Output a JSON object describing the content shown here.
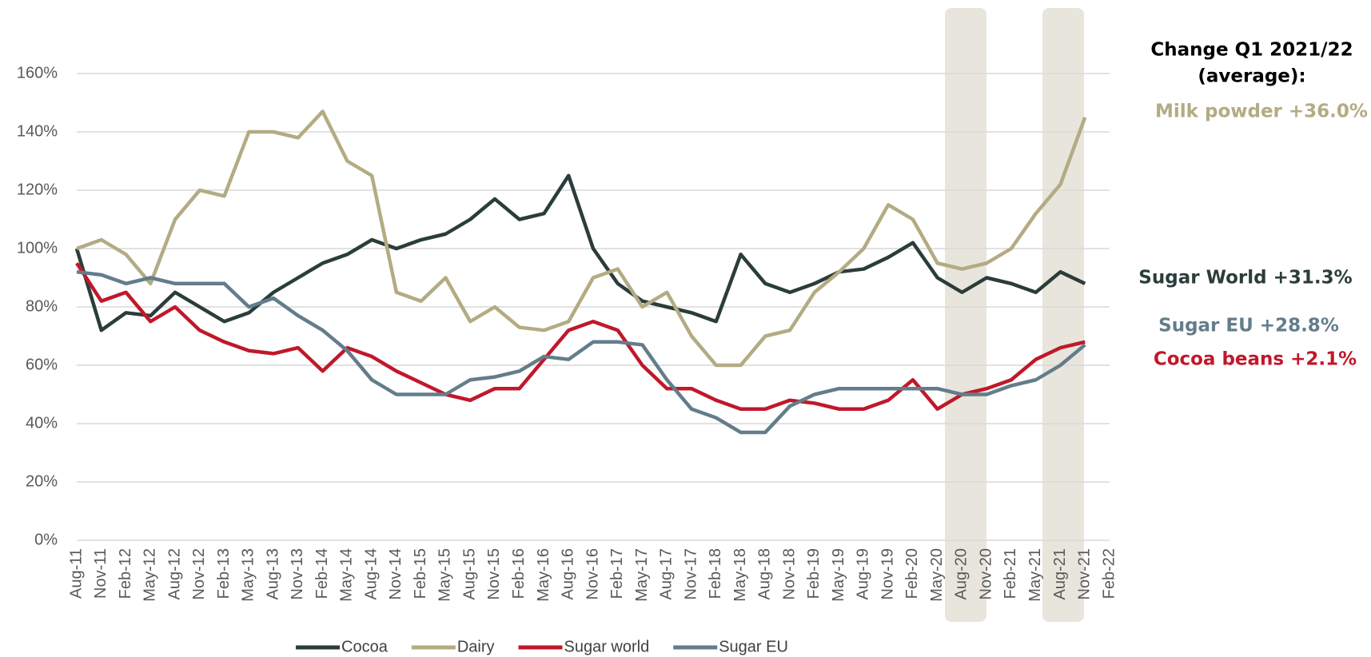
{
  "chart_data": {
    "type": "line",
    "categories": [
      "Aug-11",
      "Nov-11",
      "Feb-12",
      "May-12",
      "Aug-12",
      "Nov-12",
      "Feb-13",
      "May-13",
      "Aug-13",
      "Nov-13",
      "Feb-14",
      "May-14",
      "Aug-14",
      "Nov-14",
      "Feb-15",
      "May-15",
      "Aug-15",
      "Nov-15",
      "Feb-16",
      "May-16",
      "Aug-16",
      "Nov-16",
      "Feb-17",
      "May-17",
      "Aug-17",
      "Nov-17",
      "Feb-18",
      "May-18",
      "Aug-18",
      "Nov-18",
      "Feb-19",
      "May-19",
      "Aug-19",
      "Nov-19",
      "Feb-20",
      "May-20",
      "Aug-20",
      "Nov-20",
      "Feb-21",
      "May-21",
      "Aug-21",
      "Nov-21",
      "Feb-22"
    ],
    "series": [
      {
        "name": "Cocoa",
        "color": "#2b3d3a",
        "values": [
          100,
          72,
          78,
          77,
          85,
          80,
          75,
          78,
          85,
          90,
          95,
          98,
          103,
          100,
          103,
          105,
          110,
          117,
          110,
          112,
          125,
          100,
          88,
          82,
          80,
          78,
          75,
          98,
          88,
          85,
          88,
          92,
          93,
          97,
          102,
          90,
          85,
          90,
          88,
          85,
          92,
          88,
          null
        ]
      },
      {
        "name": "Dairy",
        "color": "#b3ab83",
        "values": [
          100,
          103,
          98,
          88,
          110,
          120,
          118,
          140,
          140,
          138,
          147,
          130,
          125,
          85,
          82,
          90,
          75,
          80,
          73,
          72,
          75,
          90,
          93,
          80,
          85,
          70,
          60,
          60,
          70,
          72,
          85,
          92,
          100,
          115,
          110,
          95,
          93,
          95,
          100,
          112,
          122,
          145,
          null
        ]
      },
      {
        "name": "Sugar world",
        "color": "#c0182b",
        "values": [
          95,
          82,
          85,
          75,
          80,
          72,
          68,
          65,
          64,
          66,
          58,
          66,
          63,
          58,
          54,
          50,
          48,
          52,
          52,
          62,
          72,
          75,
          72,
          60,
          52,
          52,
          48,
          45,
          45,
          48,
          47,
          45,
          45,
          48,
          55,
          45,
          50,
          52,
          55,
          62,
          66,
          68,
          null
        ]
      },
      {
        "name": "Sugar EU",
        "color": "#637d8a",
        "values": [
          92,
          91,
          88,
          90,
          88,
          88,
          88,
          80,
          83,
          77,
          72,
          65,
          55,
          50,
          50,
          50,
          55,
          56,
          58,
          63,
          62,
          68,
          68,
          67,
          55,
          45,
          42,
          37,
          37,
          46,
          50,
          52,
          52,
          52,
          52,
          52,
          50,
          50,
          53,
          55,
          60,
          67,
          null
        ]
      }
    ],
    "ylim": [
      0,
      160
    ],
    "yticks": [
      {
        "value": 0,
        "label": "0%"
      },
      {
        "value": 20,
        "label": "20%"
      },
      {
        "value": 40,
        "label": "40%"
      },
      {
        "value": 60,
        "label": "60%"
      },
      {
        "value": 80,
        "label": "80%"
      },
      {
        "value": 100,
        "label": "100%"
      },
      {
        "value": 120,
        "label": "120%"
      },
      {
        "value": 140,
        "label": "140%"
      },
      {
        "value": 160,
        "label": "160%"
      }
    ],
    "grid": true,
    "legend": "bottom",
    "annotations": [
      {
        "text": "Change Q1 2021/22",
        "color": "#000000"
      },
      {
        "text": "(average):",
        "color": "#000000"
      },
      {
        "text": "Milk powder +36.0%",
        "color": "#b3ab83"
      },
      {
        "text": "Sugar World +31.3%",
        "color": "#2b3d3a"
      },
      {
        "text": "Sugar EU +28.8%",
        "color": "#637d8a"
      },
      {
        "text": "Cocoa beans +2.1%",
        "color": "#c0182b"
      }
    ]
  }
}
